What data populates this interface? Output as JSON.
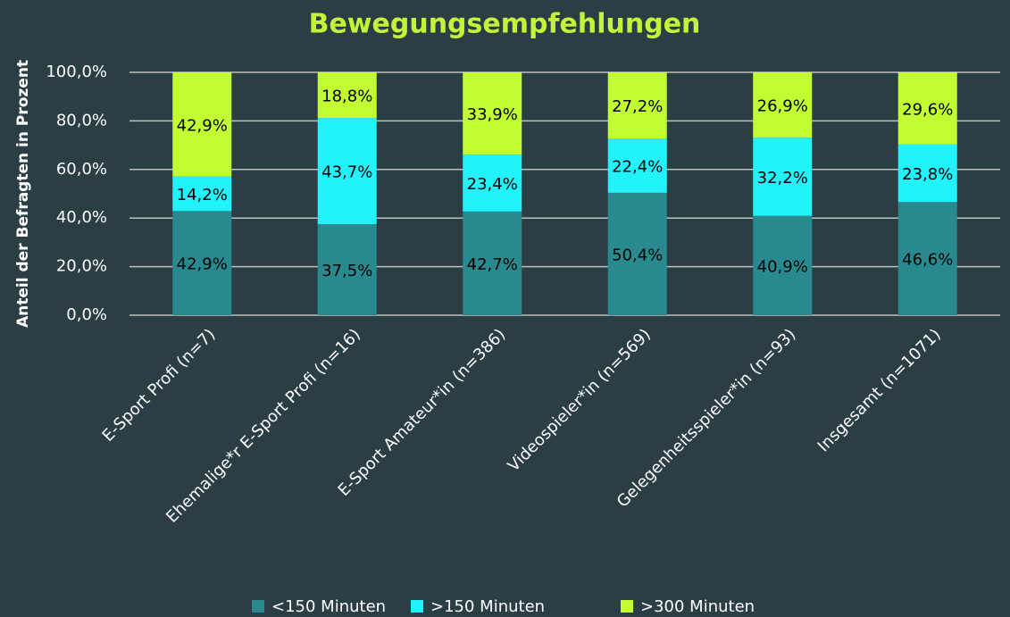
{
  "chart_data": {
    "type": "stacked_bar",
    "title": "Bewegungsempfehlungen",
    "y_label": "Anteil der Befragten in Prozent",
    "categories": [
      "E-Sport Profi (n=7)",
      "Ehemalige*r E-Sport Profi (n=16)",
      "E-Sport Amateur*in (n=386)",
      "Videospieler*in (n=569)",
      "Gelegenheitsspieler*in (n=93)",
      "Insgesamt (n=1071)"
    ],
    "series": [
      {
        "name": "<150 Minuten",
        "color": "#288a8f",
        "values": [
          42.9,
          37.5,
          42.7,
          50.4,
          40.9,
          46.6
        ],
        "value_labels": [
          "42,9%",
          "37,5%",
          "42,7%",
          "50,4%",
          "40,9%",
          "46,6%"
        ]
      },
      {
        "name": ">150 Minuten",
        "color": "#22f3fb",
        "values": [
          14.2,
          43.7,
          23.4,
          22.4,
          32.2,
          23.8
        ],
        "value_labels": [
          "14,2%",
          "43,7%",
          "23,4%",
          "22,4%",
          "32,2%",
          "23,8%"
        ]
      },
      {
        "name": ">300 Minuten",
        "color": "#c2fc32",
        "values": [
          42.9,
          18.8,
          33.9,
          27.2,
          26.9,
          29.6
        ],
        "value_labels": [
          "42,9%",
          "18,8%",
          "33,9%",
          "27,2%",
          "26,9%",
          "29,6%"
        ]
      }
    ],
    "ylim": [
      0,
      100
    ],
    "yticks": [
      {
        "value": 0,
        "label": "0,0%"
      },
      {
        "value": 20,
        "label": "20,0%"
      },
      {
        "value": 40,
        "label": "40,0%"
      },
      {
        "value": 60,
        "label": "60,0%"
      },
      {
        "value": 80,
        "label": "80,0%"
      },
      {
        "value": 100,
        "label": "100,0%"
      }
    ],
    "grid": true,
    "legend": "bottom"
  }
}
